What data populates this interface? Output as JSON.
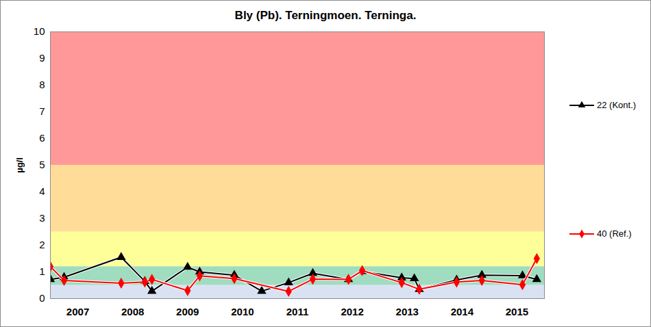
{
  "chart_data": {
    "type": "line",
    "title": "Bly (Pb). Terningmoen. Terninga.",
    "y_label": "µg/l",
    "xlim": [
      2007,
      2016
    ],
    "xticks": [
      {
        "value": 2007.5,
        "label": "2007"
      },
      {
        "value": 2008.5,
        "label": "2008"
      },
      {
        "value": 2009.5,
        "label": "2009"
      },
      {
        "value": 2010.5,
        "label": "2010"
      },
      {
        "value": 2011.5,
        "label": "2011"
      },
      {
        "value": 2012.5,
        "label": "2012"
      },
      {
        "value": 2013.5,
        "label": "2013"
      },
      {
        "value": 2014.5,
        "label": "2014"
      },
      {
        "value": 2015.5,
        "label": "2015"
      }
    ],
    "ylim": [
      0,
      10
    ],
    "yticks": [
      0,
      1,
      2,
      3,
      4,
      5,
      6,
      7,
      8,
      9,
      10
    ],
    "grid": false,
    "legend": "right",
    "bands": [
      {
        "from": 0,
        "to": 0.5,
        "color": "#d9e2f3"
      },
      {
        "from": 0.5,
        "to": 1.2,
        "color": "#9fdcc0"
      },
      {
        "from": 1.2,
        "to": 2.5,
        "color": "#ffff99"
      },
      {
        "from": 2.5,
        "to": 5,
        "color": "#ffdd99"
      },
      {
        "from": 5,
        "to": 10,
        "color": "#ff9999"
      }
    ],
    "series": [
      {
        "name": "22 (Kont.)",
        "color": "#000000",
        "marker": "triangle",
        "x": [
          2007.0,
          2007.25,
          2008.29,
          2008.72,
          2008.85,
          2009.5,
          2009.72,
          2010.35,
          2010.85,
          2011.34,
          2011.78,
          2012.43,
          2012.68,
          2013.4,
          2013.63,
          2013.72,
          2014.4,
          2014.86,
          2015.6,
          2015.86
        ],
        "values": [
          0.72,
          0.8,
          1.55,
          0.65,
          0.28,
          1.18,
          1.0,
          0.88,
          0.28,
          0.6,
          0.95,
          0.72,
          1.02,
          0.78,
          0.75,
          0.35,
          0.7,
          0.88,
          0.86,
          0.72
        ]
      },
      {
        "name": "40 (Ref.)",
        "color": "#ff0000",
        "marker": "diamond",
        "x": [
          2007.0,
          2007.25,
          2008.29,
          2008.72,
          2008.85,
          2009.5,
          2009.72,
          2010.35,
          2011.34,
          2011.78,
          2012.43,
          2012.68,
          2013.4,
          2013.72,
          2014.4,
          2014.86,
          2015.6,
          2015.86
        ],
        "values": [
          1.2,
          0.68,
          0.58,
          0.62,
          0.72,
          0.3,
          0.85,
          0.75,
          0.27,
          0.73,
          0.72,
          1.05,
          0.6,
          0.35,
          0.62,
          0.68,
          0.52,
          1.5
        ]
      }
    ]
  }
}
